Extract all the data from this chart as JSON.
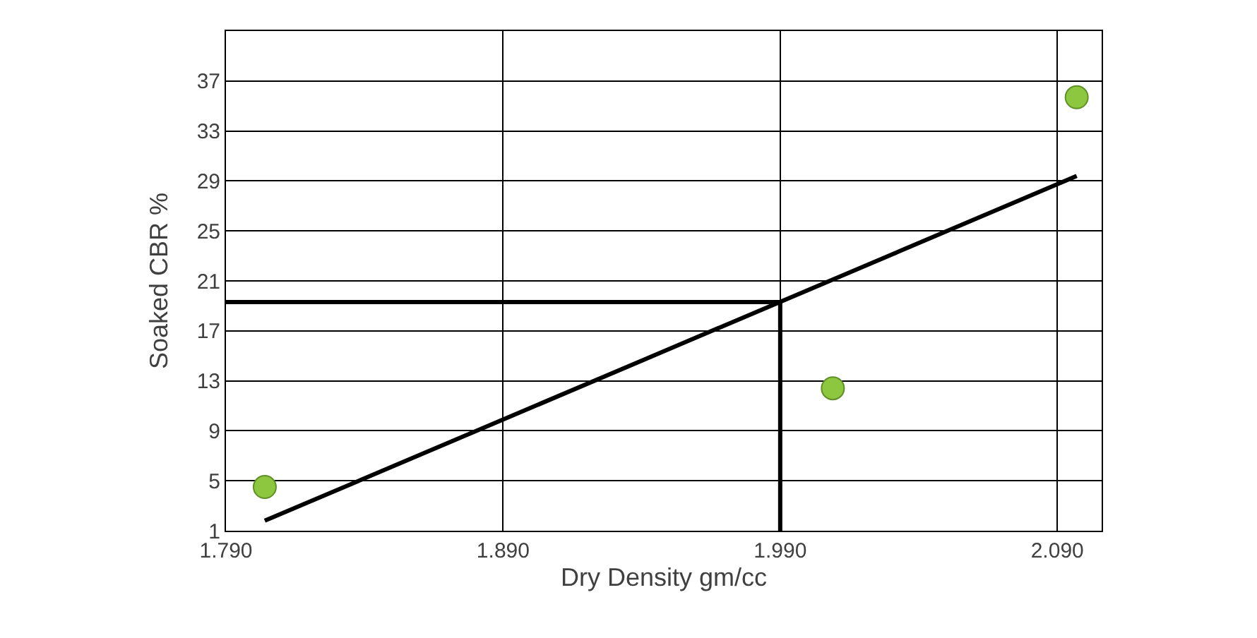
{
  "chart_data": {
    "type": "scatter",
    "xlabel": "Dry Density gm/cc",
    "ylabel": "Soaked CBR %",
    "xlim": [
      1.79,
      2.106
    ],
    "xticks": [
      {
        "value": 1.79,
        "label": "1.790"
      },
      {
        "value": 1.89,
        "label": "1.890"
      },
      {
        "value": 1.99,
        "label": "1.990"
      },
      {
        "value": 2.09,
        "label": "2.090"
      }
    ],
    "ylim": [
      1,
      41
    ],
    "yticks": [
      1,
      5,
      9,
      13,
      17,
      21,
      25,
      29,
      33,
      37
    ],
    "grid": true,
    "series": [
      {
        "marker": "circle",
        "color": "#8dc63f",
        "x": [
          1.804,
          2.009,
          2.097
        ],
        "values": [
          4.5,
          12.4,
          35.7
        ]
      },
      {
        "type": "line",
        "marker": "none",
        "color": "#000000",
        "x": [
          1.804,
          2.097
        ],
        "values": [
          1.8,
          29.4
        ]
      },
      {
        "type": "line",
        "marker": "none",
        "color": "#000000",
        "x": [
          1.79,
          1.99,
          1.99
        ],
        "values": [
          19.3,
          19.3,
          1
        ]
      }
    ]
  }
}
